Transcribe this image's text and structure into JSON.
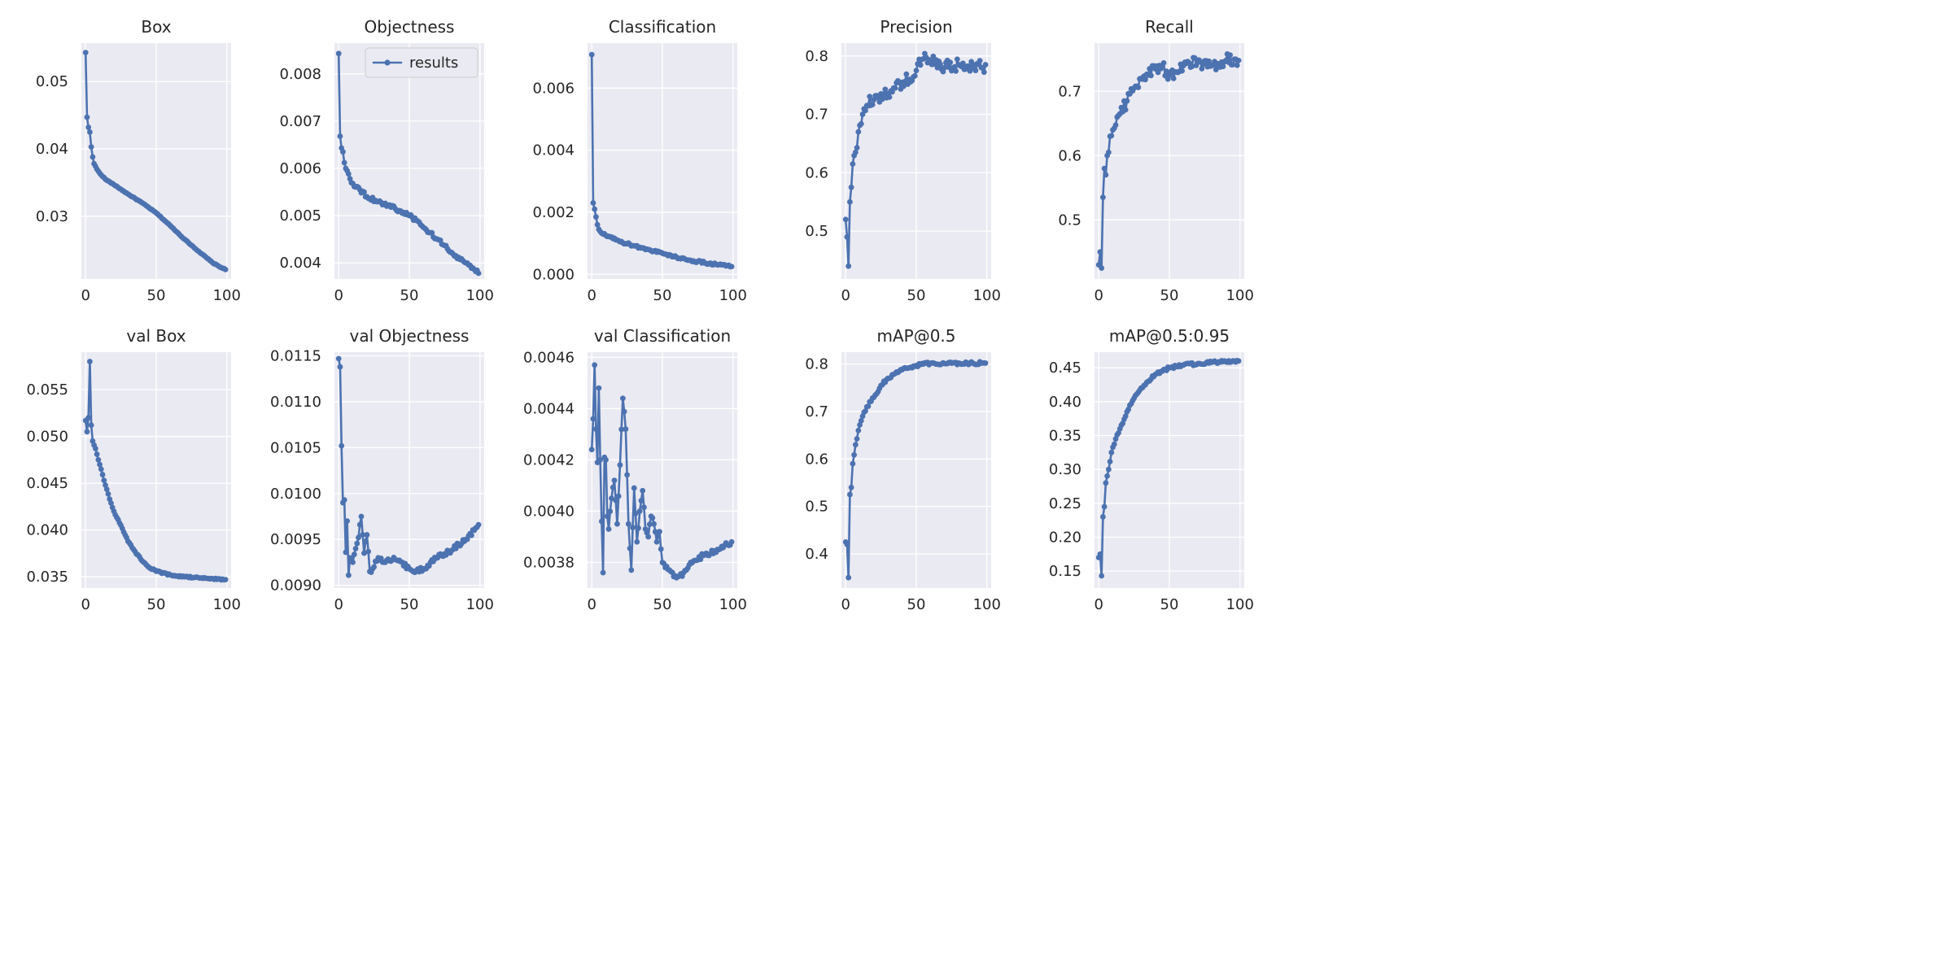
{
  "figure": {
    "colors": {
      "series": "#4c72b0",
      "panel_background": "#eaeaf2",
      "grid": "#ffffff"
    }
  },
  "chart_data": [
    {
      "type": "line",
      "title": "Box",
      "xlim": [
        -3,
        103
      ],
      "ylim": [
        0.0207,
        0.0557
      ],
      "xticks": [
        0,
        50,
        100
      ],
      "yticks": [
        0.03,
        0.04,
        0.05
      ],
      "ytick_labels": [
        "0.03",
        "0.04",
        "0.05"
      ],
      "keypoints": [
        [
          0,
          0.0543
        ],
        [
          1,
          0.0447
        ],
        [
          2,
          0.0432
        ],
        [
          3,
          0.0425
        ],
        [
          4,
          0.0403
        ],
        [
          5,
          0.0388
        ],
        [
          6,
          0.0378
        ],
        [
          8,
          0.037
        ],
        [
          10,
          0.0364
        ],
        [
          14,
          0.0355
        ],
        [
          20,
          0.0347
        ],
        [
          30,
          0.0333
        ],
        [
          40,
          0.032
        ],
        [
          50,
          0.0305
        ],
        [
          60,
          0.0286
        ],
        [
          70,
          0.0266
        ],
        [
          80,
          0.0248
        ],
        [
          90,
          0.0231
        ],
        [
          96,
          0.0224
        ],
        [
          99,
          0.0221
        ]
      ],
      "noise": 5e-05,
      "grid": true,
      "legend": null
    },
    {
      "type": "line",
      "title": "Objectness",
      "xlim": [
        -3,
        103
      ],
      "ylim": [
        0.00366,
        0.00865
      ],
      "xticks": [
        0,
        50,
        100
      ],
      "yticks": [
        0.004,
        0.005,
        0.006,
        0.007,
        0.008
      ],
      "ytick_labels": [
        "0.004",
        "0.005",
        "0.006",
        "0.007",
        "0.008"
      ],
      "keypoints": [
        [
          0,
          0.00843
        ],
        [
          1,
          0.00668
        ],
        [
          2,
          0.00643
        ],
        [
          3,
          0.00635
        ],
        [
          4,
          0.00612
        ],
        [
          6,
          0.00595
        ],
        [
          8,
          0.00578
        ],
        [
          10,
          0.00568
        ],
        [
          15,
          0.00555
        ],
        [
          20,
          0.0054
        ],
        [
          30,
          0.00528
        ],
        [
          40,
          0.00515
        ],
        [
          50,
          0.005
        ],
        [
          55,
          0.0049
        ],
        [
          60,
          0.00475
        ],
        [
          70,
          0.0045
        ],
        [
          80,
          0.00422
        ],
        [
          90,
          0.004
        ],
        [
          96,
          0.00386
        ],
        [
          99,
          0.00378
        ]
      ],
      "noise": 4e-05,
      "grid": true,
      "legend": {
        "label": "results",
        "position": "upper right"
      }
    },
    {
      "type": "line",
      "title": "Classification",
      "xlim": [
        -3,
        103
      ],
      "ylim": [
        -0.00015,
        0.00745
      ],
      "xticks": [
        0,
        50,
        100
      ],
      "yticks": [
        0.0,
        0.002,
        0.004,
        0.006
      ],
      "ytick_labels": [
        "0.000",
        "0.002",
        "0.004",
        "0.006"
      ],
      "keypoints": [
        [
          0,
          0.00708
        ],
        [
          1,
          0.0023
        ],
        [
          2,
          0.0021
        ],
        [
          3,
          0.00185
        ],
        [
          4,
          0.0016
        ],
        [
          5,
          0.00145
        ],
        [
          6,
          0.00138
        ],
        [
          8,
          0.0013
        ],
        [
          10,
          0.00125
        ],
        [
          15,
          0.00115
        ],
        [
          20,
          0.00105
        ],
        [
          30,
          0.00092
        ],
        [
          40,
          0.0008
        ],
        [
          50,
          0.00068
        ],
        [
          60,
          0.00055
        ],
        [
          70,
          0.00045
        ],
        [
          80,
          0.00037
        ],
        [
          90,
          0.00031
        ],
        [
          96,
          0.00028
        ],
        [
          99,
          0.00025
        ]
      ],
      "noise": 4e-05,
      "grid": true,
      "legend": null
    },
    {
      "type": "line",
      "title": "Precision",
      "xlim": [
        -3,
        103
      ],
      "ylim": [
        0.418,
        0.822
      ],
      "xticks": [
        0,
        50,
        100
      ],
      "yticks": [
        0.5,
        0.6,
        0.7,
        0.8
      ],
      "ytick_labels": [
        "0.5",
        "0.6",
        "0.7",
        "0.8"
      ],
      "keypoints": [
        [
          0,
          0.52
        ],
        [
          1,
          0.49
        ],
        [
          2,
          0.44
        ],
        [
          3,
          0.55
        ],
        [
          4,
          0.575
        ],
        [
          5,
          0.615
        ],
        [
          7,
          0.635
        ],
        [
          9,
          0.67
        ],
        [
          12,
          0.7
        ],
        [
          15,
          0.715
        ],
        [
          20,
          0.725
        ],
        [
          25,
          0.735
        ],
        [
          30,
          0.735
        ],
        [
          35,
          0.745
        ],
        [
          40,
          0.755
        ],
        [
          45,
          0.76
        ],
        [
          50,
          0.775
        ],
        [
          55,
          0.795
        ],
        [
          60,
          0.79
        ],
        [
          70,
          0.78
        ],
        [
          80,
          0.785
        ],
        [
          90,
          0.785
        ],
        [
          96,
          0.78
        ],
        [
          99,
          0.785
        ]
      ],
      "noise": 0.012,
      "grid": true,
      "legend": null
    },
    {
      "type": "line",
      "title": "Recall",
      "xlim": [
        -3,
        103
      ],
      "ylim": [
        0.408,
        0.775
      ],
      "xticks": [
        0,
        50,
        100
      ],
      "yticks": [
        0.5,
        0.6,
        0.7
      ],
      "ytick_labels": [
        "0.5",
        "0.6",
        "0.7"
      ],
      "keypoints": [
        [
          0,
          0.43
        ],
        [
          1,
          0.45
        ],
        [
          2,
          0.425
        ],
        [
          3,
          0.535
        ],
        [
          4,
          0.58
        ],
        [
          5,
          0.57
        ],
        [
          6,
          0.6
        ],
        [
          8,
          0.63
        ],
        [
          10,
          0.64
        ],
        [
          15,
          0.665
        ],
        [
          20,
          0.685
        ],
        [
          25,
          0.705
        ],
        [
          30,
          0.72
        ],
        [
          35,
          0.725
        ],
        [
          40,
          0.735
        ],
        [
          45,
          0.74
        ],
        [
          50,
          0.725
        ],
        [
          55,
          0.73
        ],
        [
          60,
          0.74
        ],
        [
          70,
          0.745
        ],
        [
          80,
          0.74
        ],
        [
          90,
          0.748
        ],
        [
          96,
          0.75
        ],
        [
          99,
          0.748
        ]
      ],
      "noise": 0.01,
      "grid": true,
      "legend": null
    },
    {
      "type": "line",
      "title": "val Box",
      "xlim": [
        -3,
        103
      ],
      "ylim": [
        0.0338,
        0.059
      ],
      "xticks": [
        0,
        50,
        100
      ],
      "yticks": [
        0.035,
        0.04,
        0.045,
        0.05,
        0.055
      ],
      "ytick_labels": [
        "0.035",
        "0.040",
        "0.045",
        "0.050",
        "0.055"
      ],
      "keypoints": [
        [
          0,
          0.0517
        ],
        [
          1,
          0.0505
        ],
        [
          2,
          0.052
        ],
        [
          3,
          0.058
        ],
        [
          4,
          0.0512
        ],
        [
          5,
          0.0495
        ],
        [
          7,
          0.0487
        ],
        [
          9,
          0.0475
        ],
        [
          11,
          0.0465
        ],
        [
          14,
          0.0448
        ],
        [
          17,
          0.0433
        ],
        [
          20,
          0.042
        ],
        [
          25,
          0.0405
        ],
        [
          30,
          0.0388
        ],
        [
          35,
          0.0377
        ],
        [
          40,
          0.0367
        ],
        [
          45,
          0.036
        ],
        [
          50,
          0.0356
        ],
        [
          60,
          0.0352
        ],
        [
          70,
          0.035
        ],
        [
          80,
          0.0349
        ],
        [
          90,
          0.0348
        ],
        [
          99,
          0.0347
        ]
      ],
      "noise": 8e-05,
      "grid": true,
      "legend": null
    },
    {
      "type": "line",
      "title": "val Objectness",
      "xlim": [
        -3,
        103
      ],
      "ylim": [
        0.00897,
        0.01154
      ],
      "xticks": [
        0,
        50,
        100
      ],
      "yticks": [
        0.009,
        0.0095,
        0.01,
        0.0105,
        0.011,
        0.0115
      ],
      "ytick_labels": [
        "0.0090",
        "0.0095",
        "0.0100",
        "0.0105",
        "0.0110",
        "0.0115"
      ],
      "keypoints": [
        [
          0,
          0.01147
        ],
        [
          1,
          0.01138
        ],
        [
          2,
          0.01052
        ],
        [
          3,
          0.0099
        ],
        [
          4,
          0.00993
        ],
        [
          5,
          0.00936
        ],
        [
          6,
          0.0097
        ],
        [
          7,
          0.00911
        ],
        [
          8,
          0.0093
        ],
        [
          10,
          0.00925
        ],
        [
          12,
          0.0094
        ],
        [
          14,
          0.00952
        ],
        [
          16,
          0.00975
        ],
        [
          18,
          0.00935
        ],
        [
          20,
          0.00955
        ],
        [
          22,
          0.00915
        ],
        [
          25,
          0.0092
        ],
        [
          28,
          0.0093
        ],
        [
          32,
          0.00925
        ],
        [
          40,
          0.00928
        ],
        [
          45,
          0.00925
        ],
        [
          50,
          0.00918
        ],
        [
          55,
          0.00916
        ],
        [
          60,
          0.00918
        ],
        [
          65,
          0.00925
        ],
        [
          70,
          0.0093
        ],
        [
          80,
          0.00938
        ],
        [
          90,
          0.0095
        ],
        [
          96,
          0.0096
        ],
        [
          99,
          0.00966
        ]
      ],
      "noise": 3e-05,
      "grid": true,
      "legend": null
    },
    {
      "type": "line",
      "title": "val Classification",
      "xlim": [
        -3,
        103
      ],
      "ylim": [
        0.0037,
        0.00462
      ],
      "xticks": [
        0,
        50,
        100
      ],
      "yticks": [
        0.0038,
        0.004,
        0.0042,
        0.0044,
        0.0046
      ],
      "ytick_labels": [
        "0.0038",
        "0.0040",
        "0.0042",
        "0.0044",
        "0.0046"
      ],
      "keypoints": [
        [
          0,
          0.00424
        ],
        [
          1,
          0.00436
        ],
        [
          2,
          0.00457
        ],
        [
          3,
          0.00432
        ],
        [
          4,
          0.00419
        ],
        [
          5,
          0.00448
        ],
        [
          6,
          0.0042
        ],
        [
          7,
          0.00396
        ],
        [
          8,
          0.00376
        ],
        [
          9,
          0.00421
        ],
        [
          10,
          0.0042
        ],
        [
          11,
          0.00398
        ],
        [
          12,
          0.00393
        ],
        [
          14,
          0.00405
        ],
        [
          16,
          0.00412
        ],
        [
          18,
          0.00395
        ],
        [
          20,
          0.00418
        ],
        [
          22,
          0.00444
        ],
        [
          24,
          0.00432
        ],
        [
          26,
          0.00395
        ],
        [
          28,
          0.00377
        ],
        [
          30,
          0.00409
        ],
        [
          32,
          0.00388
        ],
        [
          34,
          0.004
        ],
        [
          36,
          0.00408
        ],
        [
          38,
          0.00393
        ],
        [
          40,
          0.0039
        ],
        [
          42,
          0.00398
        ],
        [
          44,
          0.00395
        ],
        [
          46,
          0.00388
        ],
        [
          48,
          0.00392
        ],
        [
          50,
          0.0038
        ],
        [
          55,
          0.00377
        ],
        [
          60,
          0.00374
        ],
        [
          65,
          0.00376
        ],
        [
          70,
          0.0038
        ],
        [
          80,
          0.00383
        ],
        [
          90,
          0.00385
        ],
        [
          96,
          0.00387
        ],
        [
          99,
          0.00388
        ]
      ],
      "noise": 1e-05,
      "grid": true,
      "legend": null
    },
    {
      "type": "line",
      "title": "mAP@0.5",
      "xlim": [
        -3,
        103
      ],
      "ylim": [
        0.328,
        0.825
      ],
      "xticks": [
        0,
        50,
        100
      ],
      "yticks": [
        0.4,
        0.5,
        0.6,
        0.7,
        0.8
      ],
      "ytick_labels": [
        "0.4",
        "0.5",
        "0.6",
        "0.7",
        "0.8"
      ],
      "keypoints": [
        [
          0,
          0.425
        ],
        [
          1,
          0.42
        ],
        [
          2,
          0.35
        ],
        [
          3,
          0.525
        ],
        [
          4,
          0.54
        ],
        [
          5,
          0.59
        ],
        [
          7,
          0.63
        ],
        [
          9,
          0.66
        ],
        [
          12,
          0.69
        ],
        [
          15,
          0.71
        ],
        [
          20,
          0.73
        ],
        [
          25,
          0.755
        ],
        [
          30,
          0.77
        ],
        [
          35,
          0.78
        ],
        [
          40,
          0.788
        ],
        [
          45,
          0.792
        ],
        [
          50,
          0.797
        ],
        [
          55,
          0.8
        ],
        [
          60,
          0.801
        ],
        [
          70,
          0.801
        ],
        [
          80,
          0.802
        ],
        [
          90,
          0.802
        ],
        [
          99,
          0.802
        ]
      ],
      "noise": 0.003,
      "grid": true,
      "legend": null
    },
    {
      "type": "line",
      "title": "mAP@0.5:0.95",
      "xlim": [
        -3,
        103
      ],
      "ylim": [
        0.125,
        0.473
      ],
      "xticks": [
        0,
        50,
        100
      ],
      "yticks": [
        0.15,
        0.2,
        0.25,
        0.3,
        0.35,
        0.4,
        0.45
      ],
      "ytick_labels": [
        "0.15",
        "0.20",
        "0.25",
        "0.30",
        "0.35",
        "0.40",
        "0.45"
      ],
      "keypoints": [
        [
          0,
          0.17
        ],
        [
          1,
          0.175
        ],
        [
          2,
          0.143
        ],
        [
          3,
          0.23
        ],
        [
          4,
          0.245
        ],
        [
          5,
          0.28
        ],
        [
          7,
          0.3
        ],
        [
          9,
          0.325
        ],
        [
          12,
          0.345
        ],
        [
          15,
          0.36
        ],
        [
          20,
          0.385
        ],
        [
          25,
          0.405
        ],
        [
          30,
          0.42
        ],
        [
          35,
          0.43
        ],
        [
          40,
          0.44
        ],
        [
          45,
          0.445
        ],
        [
          50,
          0.45
        ],
        [
          55,
          0.452
        ],
        [
          60,
          0.454
        ],
        [
          70,
          0.456
        ],
        [
          80,
          0.458
        ],
        [
          90,
          0.459
        ],
        [
          99,
          0.46
        ]
      ],
      "noise": 0.002,
      "grid": true,
      "legend": null
    }
  ]
}
